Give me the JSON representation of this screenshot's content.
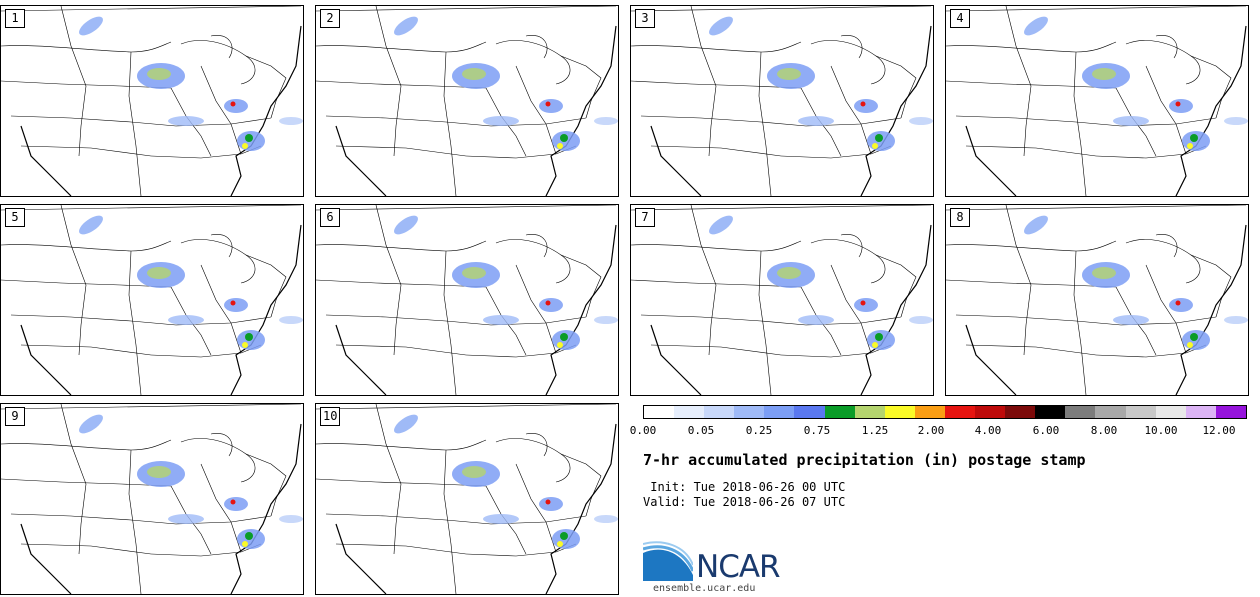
{
  "panels": [
    {
      "label": "1"
    },
    {
      "label": "2"
    },
    {
      "label": "3"
    },
    {
      "label": "4"
    },
    {
      "label": "5"
    },
    {
      "label": "6"
    },
    {
      "label": "7"
    },
    {
      "label": "8"
    },
    {
      "label": "9"
    },
    {
      "label": "10"
    }
  ],
  "colorbar": {
    "colors": [
      "#ffffff",
      "#e6eefc",
      "#c8d8fa",
      "#9fbaf7",
      "#7c9ef5",
      "#5a78f0",
      "#0a9c28",
      "#b4d46e",
      "#fafa28",
      "#fa9e14",
      "#e61410",
      "#be0a0a",
      "#7c0a0a",
      "#000000",
      "#7c7c7c",
      "#a8a8a8",
      "#c8c8c8",
      "#e8e8e8",
      "#dcb4f5",
      "#9614dc"
    ],
    "labels": [
      "0.00",
      "0.05",
      "0.25",
      "0.75",
      "1.25",
      "2.00",
      "4.00",
      "6.00",
      "8.00",
      "10.00",
      "12.00"
    ]
  },
  "title": "7-hr accumulated precipitation (in) postage stamp",
  "init": " Init: Tue 2018-06-26 00 UTC",
  "valid": "Valid: Tue 2018-06-26 07 UTC",
  "logo": {
    "name": "NCAR",
    "url": "ensemble.ucar.edu"
  }
}
